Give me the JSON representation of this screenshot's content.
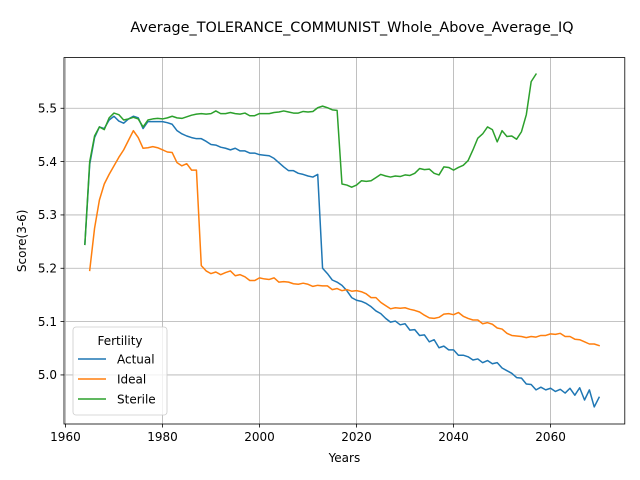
{
  "chart_data": {
    "type": "line",
    "title": "Average_TOLERANCE_COMMUNIST_Whole_Above_Average_IQ",
    "xlabel": "Years",
    "ylabel": "Score(3-6)",
    "xlim": [
      1959.7,
      2075.3
    ],
    "ylim": [
      4.908,
      5.595
    ],
    "xticks": [
      1960,
      1980,
      2000,
      2020,
      2040,
      2060
    ],
    "yticks": [
      5.0,
      5.1,
      5.2,
      5.3,
      5.4,
      5.5
    ],
    "grid": true,
    "legend": {
      "title": "Fertility",
      "placement": "lower-left"
    },
    "series": [
      {
        "name": "Actual",
        "color": "#1f77b4",
        "x": [
          1964,
          1965,
          1966,
          1967,
          1968,
          1969,
          1970,
          1971,
          1972,
          1973,
          1974,
          1975,
          1976,
          1977,
          1978,
          1979,
          1980,
          1981,
          1982,
          1983,
          1984,
          1985,
          1986,
          1987,
          1988,
          1989,
          1990,
          1991,
          1992,
          1993,
          1994,
          1995,
          1996,
          1997,
          1998,
          1999,
          2000,
          2001,
          2002,
          2003,
          2004,
          2005,
          2006,
          2007,
          2008,
          2009,
          2010,
          2011,
          2012,
          2013,
          2014,
          2015,
          2016,
          2017,
          2018,
          2019,
          2020,
          2021,
          2022,
          2023,
          2024,
          2025,
          2026,
          2027,
          2028,
          2029,
          2030,
          2031,
          2032,
          2033,
          2034,
          2035,
          2036,
          2037,
          2038,
          2039,
          2040,
          2041,
          2042,
          2043,
          2044,
          2045,
          2046,
          2047,
          2048,
          2049,
          2050,
          2051,
          2052,
          2053,
          2054,
          2055,
          2056,
          2057,
          2058,
          2059,
          2060,
          2061,
          2062,
          2063,
          2064,
          2065,
          2066,
          2067,
          2068,
          2069,
          2070
        ],
        "values": [
          5.245,
          5.395,
          5.445,
          5.465,
          5.462,
          5.478,
          5.485,
          5.476,
          5.472,
          5.48,
          5.485,
          5.482,
          5.462,
          5.475,
          5.475,
          5.475,
          5.475,
          5.473,
          5.47,
          5.458,
          5.452,
          5.448,
          5.445,
          5.443,
          5.443,
          5.438,
          5.432,
          5.431,
          5.427,
          5.425,
          5.422,
          5.425,
          5.42,
          5.42,
          5.416,
          5.416,
          5.413,
          5.412,
          5.411,
          5.406,
          5.398,
          5.39,
          5.383,
          5.383,
          5.378,
          5.376,
          5.373,
          5.371,
          5.376,
          5.2,
          5.19,
          5.178,
          5.174,
          5.168,
          5.158,
          5.145,
          5.14,
          5.138,
          5.134,
          5.128,
          5.12,
          5.115,
          5.106,
          5.099,
          5.101,
          5.094,
          5.096,
          5.084,
          5.085,
          5.074,
          5.075,
          5.062,
          5.066,
          5.051,
          5.054,
          5.047,
          5.047,
          5.037,
          5.037,
          5.034,
          5.028,
          5.03,
          5.023,
          5.027,
          5.021,
          5.023,
          5.013,
          5.008,
          5.003,
          4.995,
          4.994,
          4.983,
          4.982,
          4.972,
          4.977,
          4.972,
          4.975,
          4.969,
          4.973,
          4.966,
          4.975,
          4.962,
          4.976,
          4.953,
          4.972,
          4.94,
          4.958
        ]
      },
      {
        "name": "Ideal",
        "color": "#ff7f0e",
        "x": [
          1965,
          1966,
          1967,
          1968,
          1969,
          1970,
          1971,
          1972,
          1973,
          1974,
          1975,
          1976,
          1977,
          1978,
          1979,
          1980,
          1981,
          1982,
          1983,
          1984,
          1985,
          1986,
          1987,
          1988,
          1989,
          1990,
          1991,
          1992,
          1993,
          1994,
          1995,
          1996,
          1997,
          1998,
          1999,
          2000,
          2001,
          2002,
          2003,
          2004,
          2005,
          2006,
          2007,
          2008,
          2009,
          2010,
          2011,
          2012,
          2013,
          2014,
          2015,
          2016,
          2017,
          2018,
          2019,
          2020,
          2021,
          2022,
          2023,
          2024,
          2025,
          2026,
          2027,
          2028,
          2029,
          2030,
          2031,
          2032,
          2033,
          2034,
          2035,
          2036,
          2037,
          2038,
          2039,
          2040,
          2041,
          2042,
          2043,
          2044,
          2045,
          2046,
          2047,
          2048,
          2049,
          2050,
          2051,
          2052,
          2053,
          2054,
          2055,
          2056,
          2057,
          2058,
          2059,
          2060,
          2061,
          2062,
          2063,
          2064,
          2065,
          2066,
          2067,
          2068,
          2069,
          2070
        ],
        "values": [
          5.196,
          5.275,
          5.328,
          5.358,
          5.376,
          5.392,
          5.408,
          5.422,
          5.44,
          5.458,
          5.445,
          5.425,
          5.426,
          5.428,
          5.426,
          5.422,
          5.418,
          5.417,
          5.398,
          5.392,
          5.396,
          5.384,
          5.384,
          5.205,
          5.195,
          5.19,
          5.193,
          5.188,
          5.192,
          5.195,
          5.186,
          5.188,
          5.184,
          5.177,
          5.177,
          5.182,
          5.18,
          5.179,
          5.182,
          5.174,
          5.175,
          5.174,
          5.171,
          5.17,
          5.172,
          5.17,
          5.166,
          5.168,
          5.167,
          5.167,
          5.16,
          5.162,
          5.158,
          5.16,
          5.157,
          5.158,
          5.156,
          5.152,
          5.145,
          5.145,
          5.136,
          5.13,
          5.124,
          5.126,
          5.125,
          5.126,
          5.123,
          5.121,
          5.118,
          5.112,
          5.107,
          5.106,
          5.108,
          5.114,
          5.115,
          5.113,
          5.117,
          5.11,
          5.106,
          5.103,
          5.103,
          5.096,
          5.098,
          5.095,
          5.088,
          5.086,
          5.078,
          5.074,
          5.073,
          5.072,
          5.07,
          5.072,
          5.071,
          5.074,
          5.074,
          5.077,
          5.076,
          5.078,
          5.072,
          5.072,
          5.067,
          5.066,
          5.062,
          5.058,
          5.058,
          5.055
        ]
      },
      {
        "name": "Sterile",
        "color": "#2ca02c",
        "x": [
          1964,
          1965,
          1966,
          1967,
          1968,
          1969,
          1970,
          1971,
          1972,
          1973,
          1974,
          1975,
          1976,
          1977,
          1978,
          1979,
          1980,
          1981,
          1982,
          1983,
          1984,
          1985,
          1986,
          1987,
          1988,
          1989,
          1990,
          1991,
          1992,
          1993,
          1994,
          1995,
          1996,
          1997,
          1998,
          1999,
          2000,
          2001,
          2002,
          2003,
          2004,
          2005,
          2006,
          2007,
          2008,
          2009,
          2010,
          2011,
          2012,
          2013,
          2014,
          2015,
          2016,
          2017,
          2018,
          2019,
          2020,
          2021,
          2022,
          2023,
          2024,
          2025,
          2026,
          2027,
          2028,
          2029,
          2030,
          2031,
          2032,
          2033,
          2034,
          2035,
          2036,
          2037,
          2038,
          2039,
          2040,
          2041,
          2042,
          2043,
          2044,
          2045,
          2046,
          2047,
          2048,
          2049,
          2050,
          2051,
          2052,
          2053,
          2054,
          2055,
          2056,
          2057
        ],
        "values": [
          5.245,
          5.4,
          5.448,
          5.465,
          5.46,
          5.482,
          5.491,
          5.488,
          5.478,
          5.48,
          5.483,
          5.48,
          5.465,
          5.478,
          5.48,
          5.481,
          5.48,
          5.482,
          5.485,
          5.482,
          5.481,
          5.484,
          5.487,
          5.489,
          5.49,
          5.489,
          5.49,
          5.495,
          5.49,
          5.49,
          5.492,
          5.49,
          5.489,
          5.491,
          5.486,
          5.486,
          5.49,
          5.49,
          5.49,
          5.492,
          5.493,
          5.495,
          5.493,
          5.491,
          5.491,
          5.494,
          5.493,
          5.494,
          5.501,
          5.504,
          5.501,
          5.497,
          5.496,
          5.358,
          5.356,
          5.352,
          5.356,
          5.364,
          5.363,
          5.364,
          5.37,
          5.376,
          5.373,
          5.371,
          5.373,
          5.372,
          5.375,
          5.374,
          5.378,
          5.387,
          5.385,
          5.386,
          5.378,
          5.375,
          5.39,
          5.389,
          5.384,
          5.389,
          5.393,
          5.402,
          5.422,
          5.444,
          5.452,
          5.465,
          5.46,
          5.437,
          5.458,
          5.447,
          5.448,
          5.442,
          5.456,
          5.488,
          5.55,
          5.564
        ]
      }
    ]
  }
}
